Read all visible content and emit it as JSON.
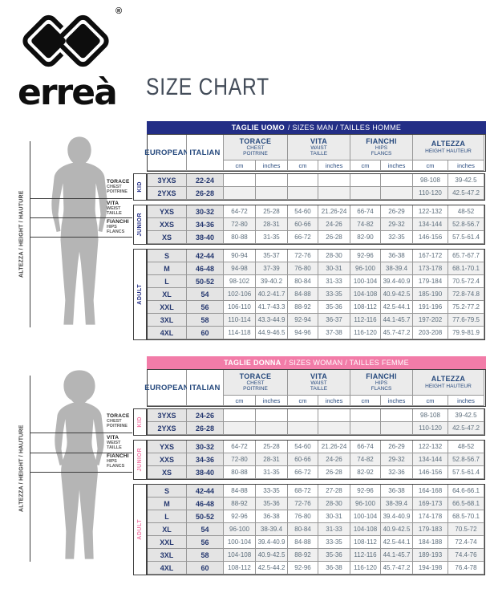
{
  "brand": {
    "logo_text": "erreà",
    "registered_mark": "®"
  },
  "page_title": "SIZE CHART",
  "figure": {
    "height_axis": "ALTEZZA / HEIGHT / HAUTURE",
    "chest": [
      "TORACE",
      "CHEST",
      "POITRINE"
    ],
    "waist": [
      "VITA",
      "WEIST",
      "TAILLE"
    ],
    "hips": [
      "FIANCHI",
      "HIPS",
      "FLANCS"
    ]
  },
  "table_header": {
    "european": "EUROPEAN",
    "italian": "ITALIAN",
    "groups": [
      {
        "name": "TORACE",
        "sub": [
          "CHEST",
          "POITRINE"
        ]
      },
      {
        "name": "VITA",
        "sub": [
          "WAIST",
          "TAILLE"
        ]
      },
      {
        "name": "FIANCHI",
        "sub": [
          "HIPS",
          "FLANCS"
        ]
      },
      {
        "name": "ALTEZZA",
        "sub": [
          "HEIGHT HAUTEUR"
        ]
      }
    ],
    "unit_cm": "cm",
    "unit_inches": "inches"
  },
  "tables": [
    {
      "id": "men",
      "title_strong": "TAGLIE UOMO",
      "title_rest": "/ SIZES MAN / TAILLES HOMME",
      "accent": "#232e86",
      "sections": [
        {
          "label": "KID",
          "rows": [
            {
              "european": "3YXS",
              "italian": "22-24",
              "values": [
                "",
                "",
                "",
                "",
                "",
                "",
                "98-108",
                "39-42.5"
              ]
            },
            {
              "european": "2YXS",
              "italian": "26-28",
              "values": [
                "",
                "",
                "",
                "",
                "",
                "",
                "110-120",
                "42.5-47.2"
              ]
            }
          ]
        },
        {
          "label": "JUNIOR",
          "rows": [
            {
              "european": "YXS",
              "italian": "30-32",
              "values": [
                "64-72",
                "25-28",
                "54-60",
                "21.26-24",
                "66-74",
                "26-29",
                "122-132",
                "48-52"
              ]
            },
            {
              "european": "XXS",
              "italian": "34-36",
              "values": [
                "72-80",
                "28-31",
                "60-66",
                "24-26",
                "74-82",
                "29-32",
                "134-144",
                "52.8-56.7"
              ]
            },
            {
              "european": "XS",
              "italian": "38-40",
              "values": [
                "80-88",
                "31-35",
                "66-72",
                "26-28",
                "82-90",
                "32-35",
                "146-156",
                "57.5-61.4"
              ]
            }
          ]
        },
        {
          "label": "ADULT",
          "rows": [
            {
              "european": "S",
              "italian": "42-44",
              "values": [
                "90-94",
                "35-37",
                "72-76",
                "28-30",
                "92-96",
                "36-38",
                "167-172",
                "65.7-67.7"
              ]
            },
            {
              "european": "M",
              "italian": "46-48",
              "values": [
                "94-98",
                "37-39",
                "76-80",
                "30-31",
                "96-100",
                "38-39.4",
                "173-178",
                "68.1-70.1"
              ]
            },
            {
              "european": "L",
              "italian": "50-52",
              "values": [
                "98-102",
                "39-40.2",
                "80-84",
                "31-33",
                "100-104",
                "39.4-40.9",
                "179-184",
                "70.5-72.4"
              ]
            },
            {
              "european": "XL",
              "italian": "54",
              "values": [
                "102-106",
                "40.2-41.7",
                "84-88",
                "33-35",
                "104-108",
                "40.9-42.5",
                "185-190",
                "72.8-74.8"
              ]
            },
            {
              "european": "XXL",
              "italian": "56",
              "values": [
                "106-110",
                "41.7-43.3",
                "88-92",
                "35-36",
                "108-112",
                "42.5-44.1",
                "191-196",
                "75.2-77.2"
              ]
            },
            {
              "european": "3XL",
              "italian": "58",
              "values": [
                "110-114",
                "43.3-44.9",
                "92-94",
                "36-37",
                "112-116",
                "44.1-45.7",
                "197-202",
                "77.6-79.5"
              ]
            },
            {
              "european": "4XL",
              "italian": "60",
              "values": [
                "114-118",
                "44.9-46.5",
                "94-96",
                "37-38",
                "116-120",
                "45.7-47.2",
                "203-208",
                "79.9-81.9"
              ]
            }
          ]
        }
      ]
    },
    {
      "id": "women",
      "title_strong": "TAGLIE DONNA",
      "title_rest": "/ SIZES WOMAN / TAILLES FEMME",
      "accent": "#f27ca8",
      "sections": [
        {
          "label": "KID",
          "rows": [
            {
              "european": "3YXS",
              "italian": "24-26",
              "values": [
                "",
                "",
                "",
                "",
                "",
                "",
                "98-108",
                "39-42.5"
              ]
            },
            {
              "european": "2YXS",
              "italian": "26-28",
              "values": [
                "",
                "",
                "",
                "",
                "",
                "",
                "110-120",
                "42.5-47.2"
              ]
            }
          ]
        },
        {
          "label": "JUNIOR",
          "rows": [
            {
              "european": "YXS",
              "italian": "30-32",
              "values": [
                "64-72",
                "25-28",
                "54-60",
                "21.26-24",
                "66-74",
                "26-29",
                "122-132",
                "48-52"
              ]
            },
            {
              "european": "XXS",
              "italian": "34-36",
              "values": [
                "72-80",
                "28-31",
                "60-66",
                "24-26",
                "74-82",
                "29-32",
                "134-144",
                "52.8-56.7"
              ]
            },
            {
              "european": "XS",
              "italian": "38-40",
              "values": [
                "80-88",
                "31-35",
                "66-72",
                "26-28",
                "82-92",
                "32-36",
                "146-156",
                "57.5-61.4"
              ]
            }
          ]
        },
        {
          "label": "ADULT",
          "rows": [
            {
              "european": "S",
              "italian": "42-44",
              "values": [
                "84-88",
                "33-35",
                "68-72",
                "27-28",
                "92-96",
                "36-38",
                "164-168",
                "64.6-66.1"
              ]
            },
            {
              "european": "M",
              "italian": "46-48",
              "values": [
                "88-92",
                "35-36",
                "72-76",
                "28-30",
                "96-100",
                "38-39.4",
                "169-173",
                "66.5-68.1"
              ]
            },
            {
              "european": "L",
              "italian": "50-52",
              "values": [
                "92-96",
                "36-38",
                "76-80",
                "30-31",
                "100-104",
                "39.4-40.9",
                "174-178",
                "68.5-70.1"
              ]
            },
            {
              "european": "XL",
              "italian": "54",
              "values": [
                "96-100",
                "38-39.4",
                "80-84",
                "31-33",
                "104-108",
                "40.9-42.5",
                "179-183",
                "70.5-72"
              ]
            },
            {
              "european": "XXL",
              "italian": "56",
              "values": [
                "100-104",
                "39.4-40.9",
                "84-88",
                "33-35",
                "108-112",
                "42.5-44.1",
                "184-188",
                "72.4-74"
              ]
            },
            {
              "european": "3XL",
              "italian": "58",
              "values": [
                "104-108",
                "40.9-42.5",
                "88-92",
                "35-36",
                "112-116",
                "44.1-45.7",
                "189-193",
                "74.4-76"
              ]
            },
            {
              "european": "4XL",
              "italian": "60",
              "values": [
                "108-112",
                "42.5-44.2",
                "92-96",
                "36-38",
                "116-120",
                "45.7-47.2",
                "194-198",
                "76.4-78"
              ]
            }
          ]
        }
      ]
    }
  ]
}
